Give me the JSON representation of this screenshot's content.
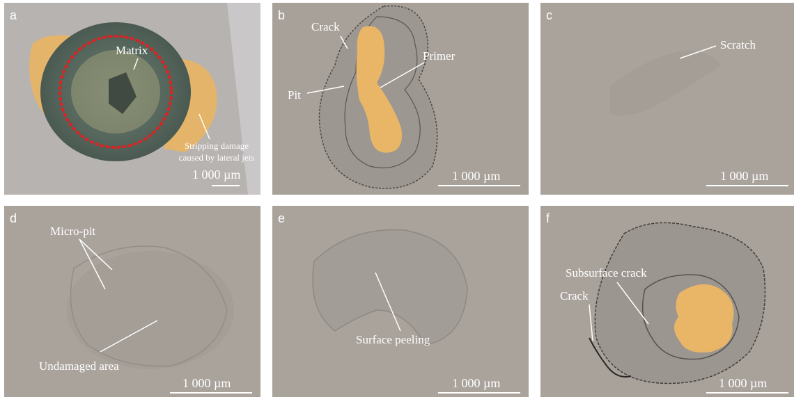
{
  "panels": [
    {
      "id": "a",
      "label": "a",
      "annotations": [
        "Matrix",
        "Stripping damage caused by lateral jets"
      ],
      "scale": "1 000 µm"
    },
    {
      "id": "b",
      "label": "b",
      "annotations": [
        "Crack",
        "Primer",
        "Pit"
      ],
      "scale": "1 000 µm"
    },
    {
      "id": "c",
      "label": "c",
      "annotations": [
        "Scratch"
      ],
      "scale": "1 000 µm"
    },
    {
      "id": "d",
      "label": "d",
      "annotations": [
        "Micro-pit",
        "Undamaged area"
      ],
      "scale": "1 000 µm"
    },
    {
      "id": "e",
      "label": "e",
      "annotations": [
        "Surface peeling"
      ],
      "scale": "1 000 µm"
    },
    {
      "id": "f",
      "label": "f",
      "annotations": [
        "Subsurface crack",
        "Crack"
      ],
      "scale": "1 000 µm"
    }
  ],
  "colors": {
    "background": "#a9a29b",
    "primer": "#e9b566",
    "matrix": "#5f6f66",
    "annotation": "#ffffff",
    "dashed_circle": "#e02020"
  }
}
